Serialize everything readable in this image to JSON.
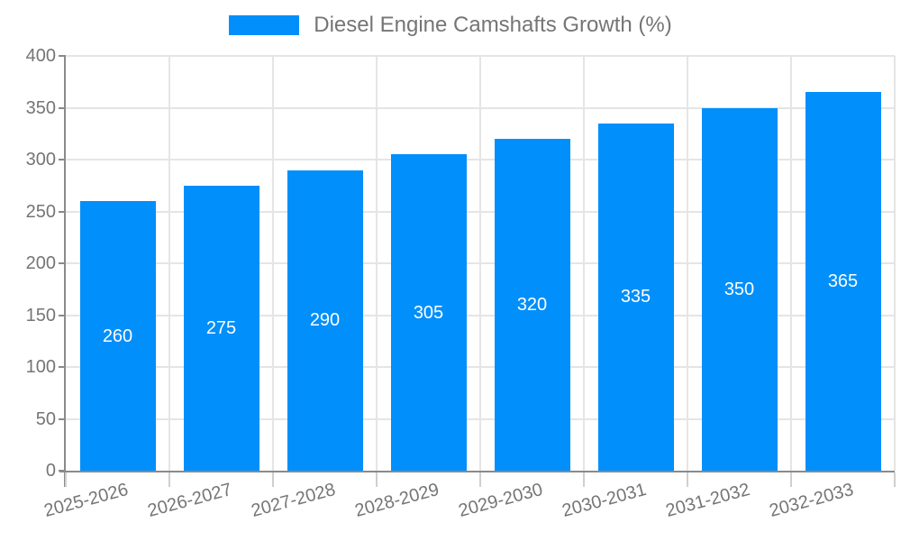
{
  "legend": {
    "label": "Diesel Engine Camshafts Growth (%)"
  },
  "chart_data": {
    "type": "bar",
    "title": "Diesel Engine Camshafts Growth (%)",
    "categories": [
      "2025-2026",
      "2026-2027",
      "2027-2028",
      "2028-2029",
      "2029-2030",
      "2030-2031",
      "2031-2032",
      "2032-2033"
    ],
    "values": [
      260,
      275,
      290,
      305,
      320,
      335,
      350,
      365
    ],
    "xlabel": "",
    "ylabel": "",
    "ylim": [
      0,
      400
    ],
    "yticks": [
      0,
      50,
      100,
      150,
      200,
      250,
      300,
      350,
      400
    ],
    "grid": true,
    "legend_position": "top",
    "colors": {
      "bar": "#008FFB",
      "bar_label": "#FFFFFF",
      "axis_text": "#757575",
      "title_text": "#757575",
      "axis_line": "#8A8A8A",
      "gridline": "#E5E5E5",
      "minor_tick": "#CFCFCF",
      "background": "#FFFFFF"
    }
  }
}
